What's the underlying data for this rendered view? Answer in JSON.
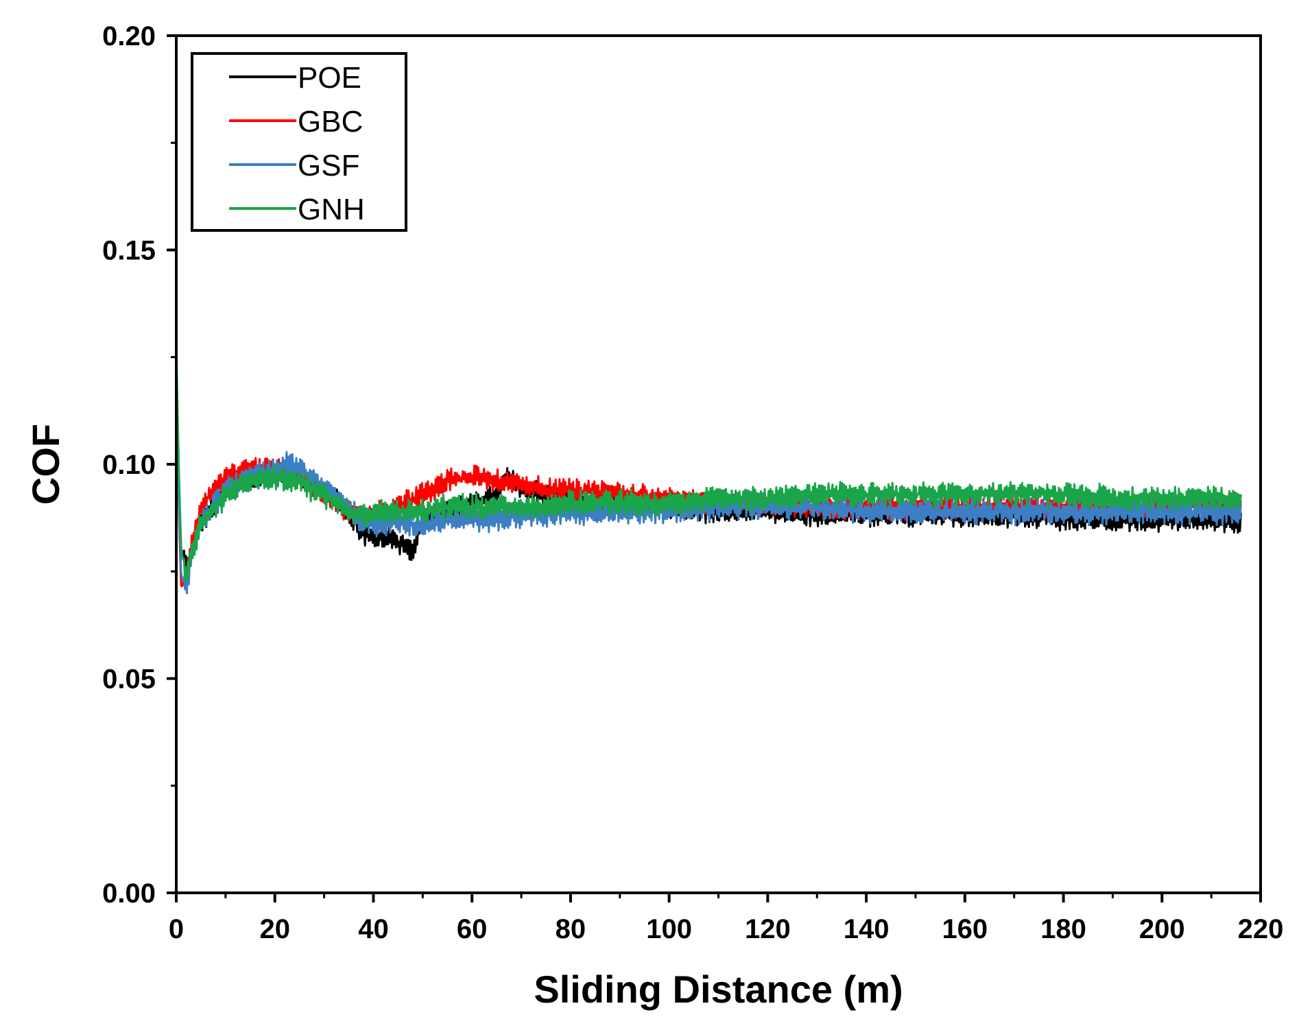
{
  "chart_data": {
    "type": "line",
    "title": "",
    "xlabel": "Sliding Distance (m)",
    "ylabel": "COF",
    "xlim": [
      0,
      220
    ],
    "ylim": [
      0,
      0.2
    ],
    "x_ticks": [
      0,
      20,
      40,
      60,
      80,
      100,
      120,
      140,
      160,
      180,
      200,
      220
    ],
    "x_tick_labels": [
      "0",
      "20",
      "40",
      "60",
      "80",
      "100",
      "120",
      "140",
      "160",
      "180",
      "200",
      "220"
    ],
    "y_ticks": [
      0,
      0.05,
      0.1,
      0.15,
      0.2
    ],
    "y_tick_labels": [
      "0.00",
      "0.05",
      "0.10",
      "0.15",
      "0.20"
    ],
    "grid": false,
    "legend_position": "top-left",
    "series": [
      {
        "name": "POE",
        "color": "#000000",
        "x": [
          0,
          0.5,
          1,
          2,
          3,
          5,
          8,
          10,
          15,
          20,
          25,
          30,
          35,
          38,
          42,
          45,
          48,
          50,
          55,
          60,
          65,
          67,
          70,
          75,
          80,
          90,
          100,
          110,
          120,
          130,
          140,
          150,
          160,
          170,
          180,
          190,
          200,
          210,
          216
        ],
        "y": [
          0.124,
          0.095,
          0.08,
          0.076,
          0.079,
          0.086,
          0.091,
          0.094,
          0.097,
          0.098,
          0.097,
          0.094,
          0.089,
          0.084,
          0.083,
          0.082,
          0.08,
          0.087,
          0.089,
          0.091,
          0.093,
          0.097,
          0.094,
          0.093,
          0.092,
          0.091,
          0.09,
          0.089,
          0.089,
          0.088,
          0.088,
          0.088,
          0.088,
          0.088,
          0.087,
          0.087,
          0.087,
          0.087,
          0.086
        ],
        "noise": 0.0022
      },
      {
        "name": "GBC",
        "color": "#ff0000",
        "x": [
          0,
          0.5,
          1,
          2,
          3,
          5,
          8,
          10,
          15,
          20,
          25,
          30,
          35,
          38,
          42,
          45,
          50,
          55,
          60,
          65,
          70,
          75,
          80,
          90,
          100,
          110,
          120,
          130,
          140,
          150,
          160,
          170,
          180,
          190,
          200,
          210,
          216
        ],
        "y": [
          0.124,
          0.09,
          0.071,
          0.074,
          0.081,
          0.09,
          0.095,
          0.097,
          0.099,
          0.099,
          0.097,
          0.093,
          0.089,
          0.088,
          0.089,
          0.09,
          0.093,
          0.096,
          0.097,
          0.096,
          0.095,
          0.094,
          0.094,
          0.093,
          0.092,
          0.091,
          0.091,
          0.09,
          0.09,
          0.09,
          0.09,
          0.09,
          0.09,
          0.09,
          0.09,
          0.091,
          0.091
        ],
        "noise": 0.0022
      },
      {
        "name": "GSF",
        "color": "#3d7fc4",
        "x": [
          0,
          0.5,
          1,
          2,
          3,
          5,
          8,
          10,
          15,
          20,
          23,
          25,
          30,
          35,
          38,
          42,
          45,
          50,
          55,
          60,
          65,
          70,
          75,
          80,
          90,
          100,
          110,
          120,
          130,
          140,
          150,
          160,
          170,
          180,
          190,
          200,
          210,
          216
        ],
        "y": [
          0.124,
          0.092,
          0.074,
          0.071,
          0.078,
          0.086,
          0.091,
          0.094,
          0.097,
          0.099,
          0.1,
          0.099,
          0.095,
          0.09,
          0.087,
          0.086,
          0.087,
          0.085,
          0.087,
          0.087,
          0.087,
          0.088,
          0.088,
          0.089,
          0.089,
          0.089,
          0.09,
          0.09,
          0.09,
          0.089,
          0.089,
          0.089,
          0.089,
          0.089,
          0.089,
          0.089,
          0.089,
          0.089
        ],
        "noise": 0.0024
      },
      {
        "name": "GNH",
        "color": "#1aa54a",
        "x": [
          0,
          0.5,
          1,
          2,
          3,
          5,
          8,
          10,
          15,
          20,
          25,
          30,
          35,
          38,
          42,
          45,
          50,
          55,
          60,
          65,
          70,
          75,
          80,
          90,
          100,
          110,
          120,
          130,
          140,
          150,
          160,
          170,
          180,
          190,
          200,
          210,
          216
        ],
        "y": [
          0.128,
          0.1,
          0.08,
          0.074,
          0.079,
          0.086,
          0.09,
          0.093,
          0.096,
          0.097,
          0.096,
          0.093,
          0.089,
          0.088,
          0.089,
          0.089,
          0.089,
          0.09,
          0.09,
          0.09,
          0.09,
          0.09,
          0.091,
          0.091,
          0.091,
          0.092,
          0.092,
          0.093,
          0.093,
          0.093,
          0.093,
          0.093,
          0.093,
          0.092,
          0.092,
          0.092,
          0.092
        ],
        "noise": 0.0024
      }
    ]
  }
}
